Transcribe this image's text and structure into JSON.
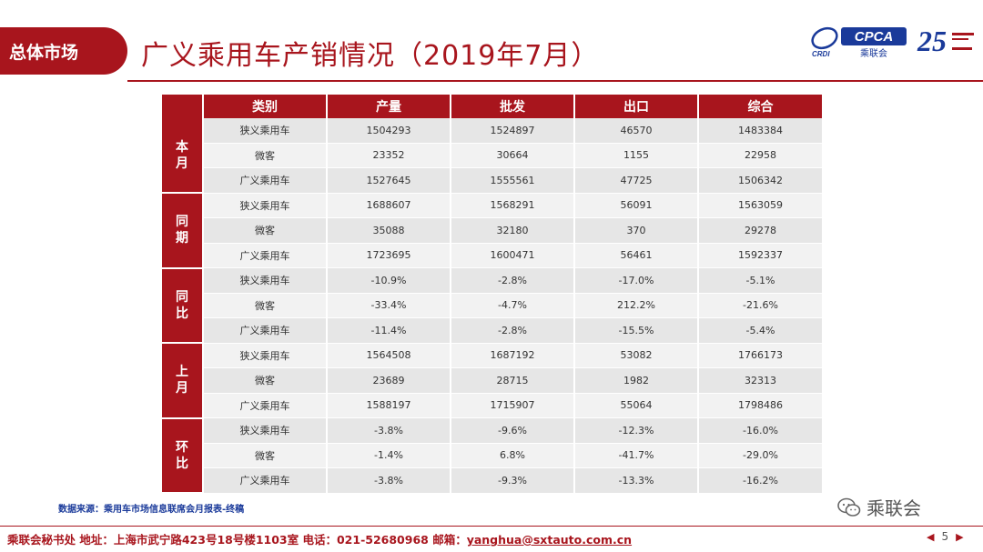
{
  "header": {
    "section_tag": "总体市场",
    "title": "广义乘用车产销情况（2019年7月）",
    "logo_text": "CPCA",
    "logo_subtext": "乘联会",
    "logo_small": "CRDI",
    "anniversary": "25"
  },
  "table": {
    "columns": [
      "类别",
      "产量",
      "批发",
      "出口",
      "综合"
    ],
    "groups": [
      {
        "label": "本月",
        "rows": [
          {
            "category": "狭义乘用车",
            "production": "1504293",
            "wholesale": "1524897",
            "export": "46570",
            "total": "1483384"
          },
          {
            "category": "微客",
            "production": "23352",
            "wholesale": "30664",
            "export": "1155",
            "total": "22958"
          },
          {
            "category": "广义乘用车",
            "production": "1527645",
            "wholesale": "1555561",
            "export": "47725",
            "total": "1506342"
          }
        ]
      },
      {
        "label": "同期",
        "rows": [
          {
            "category": "狭义乘用车",
            "production": "1688607",
            "wholesale": "1568291",
            "export": "56091",
            "total": "1563059"
          },
          {
            "category": "微客",
            "production": "35088",
            "wholesale": "32180",
            "export": "370",
            "total": "29278"
          },
          {
            "category": "广义乘用车",
            "production": "1723695",
            "wholesale": "1600471",
            "export": "56461",
            "total": "1592337"
          }
        ]
      },
      {
        "label": "同比",
        "rows": [
          {
            "category": "狭义乘用车",
            "production": "-10.9%",
            "wholesale": "-2.8%",
            "export": "-17.0%",
            "total": "-5.1%"
          },
          {
            "category": "微客",
            "production": "-33.4%",
            "wholesale": "-4.7%",
            "export": "212.2%",
            "total": "-21.6%"
          },
          {
            "category": "广义乘用车",
            "production": "-11.4%",
            "wholesale": "-2.8%",
            "export": "-15.5%",
            "total": "-5.4%"
          }
        ]
      },
      {
        "label": "上月",
        "rows": [
          {
            "category": "狭义乘用车",
            "production": "1564508",
            "wholesale": "1687192",
            "export": "53082",
            "total": "1766173"
          },
          {
            "category": "微客",
            "production": "23689",
            "wholesale": "28715",
            "export": "1982",
            "total": "32313"
          },
          {
            "category": "广义乘用车",
            "production": "1588197",
            "wholesale": "1715907",
            "export": "55064",
            "total": "1798486"
          }
        ]
      },
      {
        "label": "环比",
        "rows": [
          {
            "category": "狭义乘用车",
            "production": "-3.8%",
            "wholesale": "-9.6%",
            "export": "-12.3%",
            "total": "-16.0%"
          },
          {
            "category": "微客",
            "production": "-1.4%",
            "wholesale": "6.8%",
            "export": "-41.7%",
            "total": "-29.0%"
          },
          {
            "category": "广义乘用车",
            "production": "-3.8%",
            "wholesale": "-9.3%",
            "export": "-13.3%",
            "total": "-16.2%"
          }
        ]
      }
    ]
  },
  "source_note": "数据来源：乘用车市场信息联席会月报表-终稿",
  "wechat_label": "乘联会",
  "footer": {
    "prefix": "乘联会秘书处   地址：上海市武宁路423号18号楼1103室  电话：021-52680968   邮箱：",
    "email": "yanghua@sxtauto.com.cn",
    "page_number": "5"
  },
  "colors": {
    "brand_red": "#a8151d",
    "row_dark": "#e6e6e6",
    "row_light": "#f2f2f2",
    "source_blue": "#1a3a9a"
  }
}
